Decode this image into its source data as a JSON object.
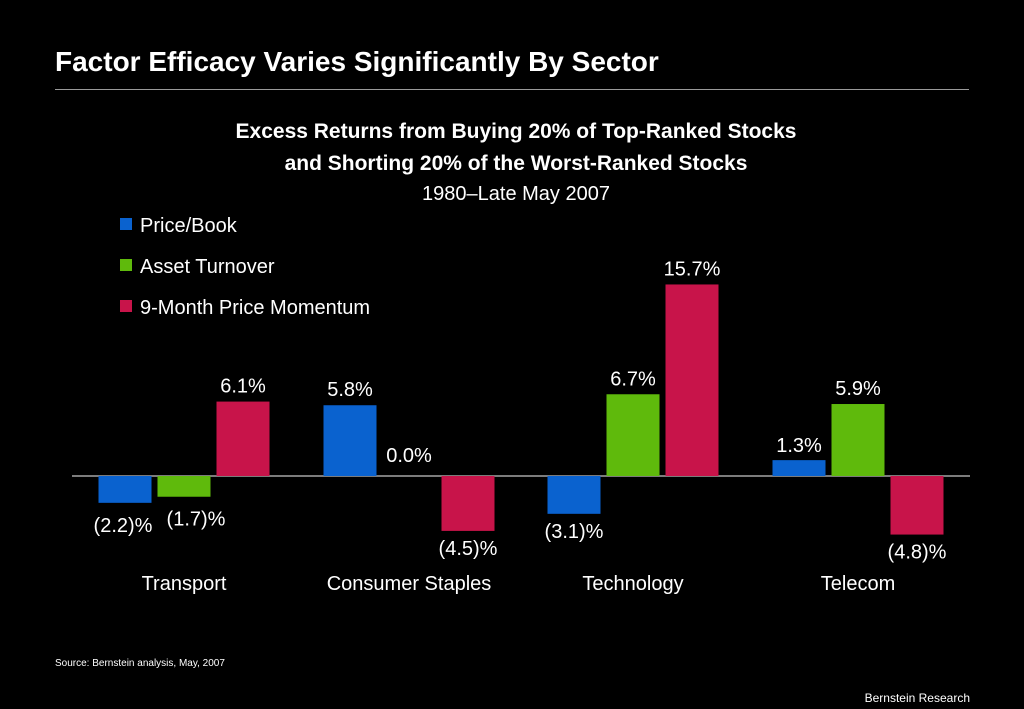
{
  "slide": {
    "title": "Factor Efficacy Varies Significantly By Sector",
    "source": "Source: Bernstein analysis, May, 2007",
    "footer": "Bernstein Research"
  },
  "chart_data": {
    "type": "bar",
    "title": "Excess Returns from Buying 20% of Top-Ranked Stocks",
    "title_line2": "and Shorting 20% of the Worst-Ranked Stocks",
    "subtitle": "1980–Late May 2007",
    "categories": [
      "Transport",
      "Consumer Staples",
      "Technology",
      "Telecom"
    ],
    "series": [
      {
        "name": "Price/Book",
        "color": "#0a62cf",
        "values": [
          -2.2,
          5.8,
          -3.1,
          1.3
        ],
        "labels": [
          "(2.2)%",
          "5.8%",
          "(3.1)%",
          "1.3%"
        ]
      },
      {
        "name": "Asset Turnover",
        "color": "#5fba0c",
        "values": [
          -1.7,
          0.0,
          6.7,
          5.9
        ],
        "labels": [
          "(1.7)%",
          "0.0%",
          "6.7%",
          "5.9%"
        ]
      },
      {
        "name": "9-Month Price Momentum",
        "color": "#c8144a",
        "values": [
          6.1,
          -4.5,
          15.7,
          -4.8
        ],
        "labels": [
          "6.1%",
          "(4.5)%",
          "15.7%",
          "(4.8)%"
        ]
      }
    ],
    "legend_position": "top-left",
    "grid": false,
    "ylim": [
      -6,
      20
    ]
  }
}
